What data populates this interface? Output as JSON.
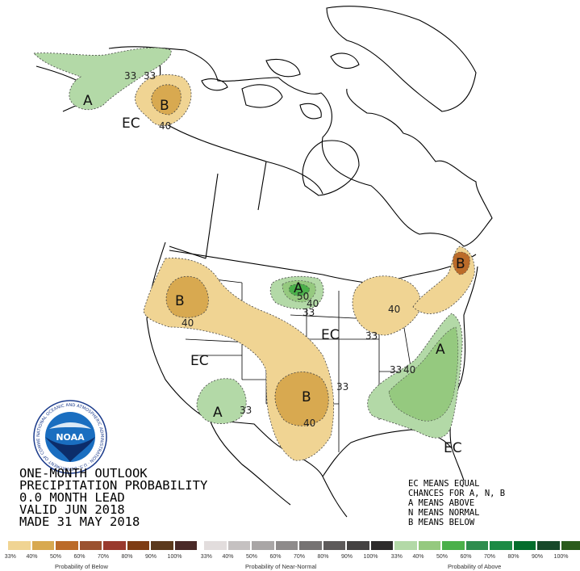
{
  "title_lines": [
    "ONE-MONTH OUTLOOK",
    "PRECIPITATION PROBABILITY",
    "0.0 MONTH LEAD",
    "VALID JUN 2018",
    "MADE 31 MAY 2018"
  ],
  "key_lines": [
    "EC MEANS EQUAL",
    "CHANCES FOR A, N, B",
    "A MEANS ABOVE",
    "N MEANS NORMAL",
    "B MEANS BELOW"
  ],
  "zone_labels": {
    "alaska_above": "A",
    "alaska_ec": "EC",
    "yukon_below": "B",
    "northwest_below": "B",
    "west_ec": "EC",
    "southwest_above": "A",
    "southern_plains_below": "B",
    "upper_midwest_above": "A",
    "midwest_ec": "EC",
    "new_england_below": "B",
    "southeast_above": "A",
    "gulf_ec": "EC"
  },
  "contour_labels": {
    "ak_33_a": "33",
    "ak_33_b": "33",
    "yukon_40": "40",
    "nw_40": "40",
    "sw_33": "33",
    "plains_40": "40",
    "plains_33": "33",
    "mn_50": "50",
    "mn_40": "40",
    "mn_33": "33",
    "gl_40": "40",
    "gl_33": "33",
    "se_33": "33",
    "se_40": "40"
  },
  "legends": [
    {
      "caption": "Probability of Below",
      "colors": [
        "#f0d493",
        "#d8a950",
        "#bb6b29",
        "#9b5230",
        "#993a2d",
        "#7e3c13",
        "#5c3a1d",
        "#4a2a28"
      ],
      "ticks": [
        "33%",
        "40%",
        "50%",
        "60%",
        "70%",
        "80%",
        "90%",
        "100%"
      ]
    },
    {
      "caption": "Probability of Near-Normal",
      "colors": [
        "#e2dddd",
        "#c5c1c1",
        "#a9a6a6",
        "#8e8b8b",
        "#767373",
        "#5d5a5a",
        "#444242",
        "#2d2b2b"
      ],
      "ticks": [
        "33%",
        "40%",
        "50%",
        "60%",
        "70%",
        "80%",
        "90%",
        "100%"
      ]
    },
    {
      "caption": "Probability of Above",
      "colors": [
        "#b3d9a7",
        "#95c97f",
        "#4bb04a",
        "#2e8d4e",
        "#1c8b45",
        "#036d2c",
        "#17492a",
        "#2b5b1c"
      ],
      "ticks": [
        "33%",
        "40%",
        "50%",
        "60%",
        "70%",
        "80%",
        "90%",
        "100%"
      ]
    }
  ],
  "colors": {
    "below_33": "#f0d493",
    "below_40": "#d8a950",
    "above_33": "#b3d9a7",
    "above_40": "#95c97f",
    "above_50": "#4bb04a",
    "boundary": "#000000"
  },
  "logo": {
    "text": "NOAA",
    "ring_text": "NATIONAL OCEANIC AND ATMOSPHERIC ADMINISTRATION · U.S. DEPARTMENT OF COMMERCE"
  }
}
